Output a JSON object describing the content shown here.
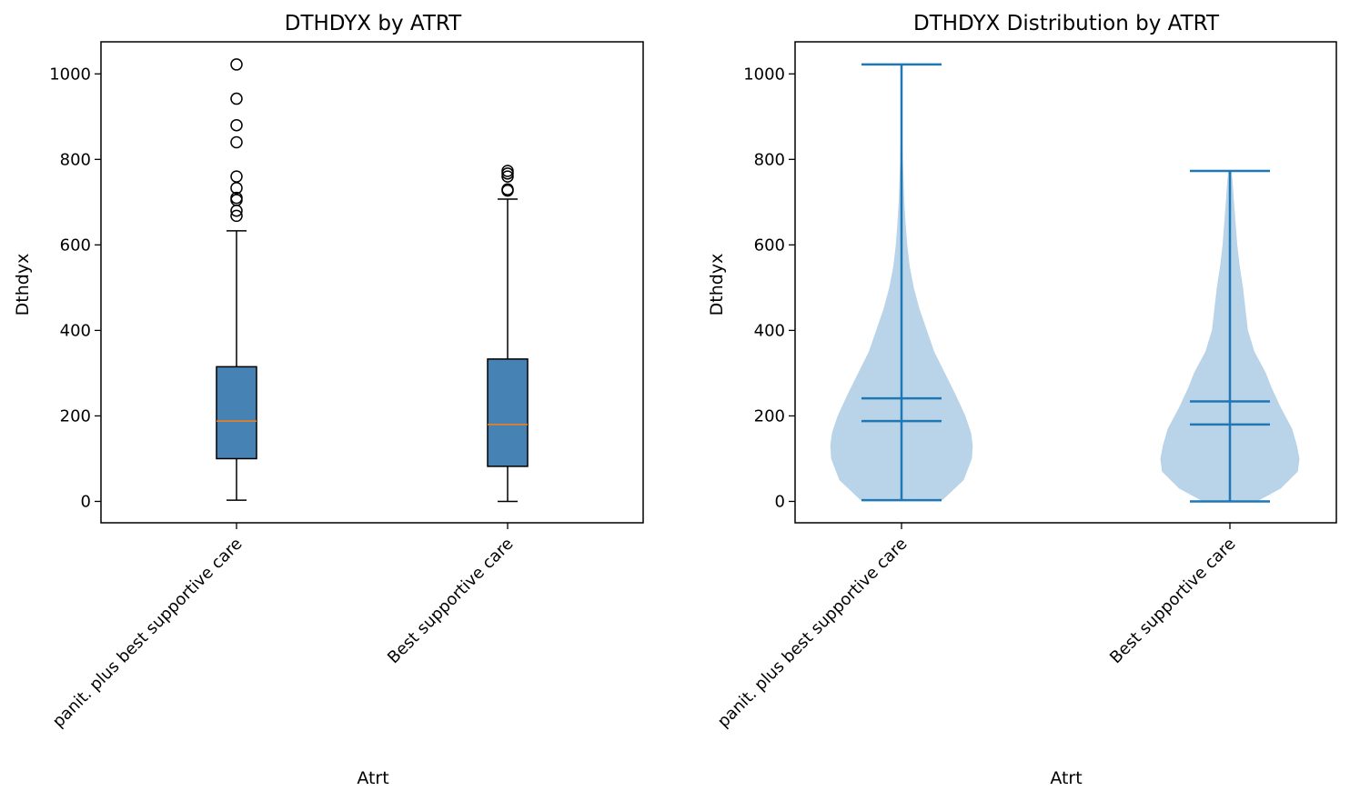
{
  "chart_data": [
    {
      "type": "box",
      "title": "DTHDYX by ATRT",
      "xlabel": "Atrt",
      "ylabel": "Dthdyx",
      "ylim": [
        -50,
        1075
      ],
      "yticks": [
        0,
        200,
        400,
        600,
        800,
        1000
      ],
      "box_color": "#4682b4",
      "median_color": "#ff7f0e",
      "categories": [
        "panit. plus best supportive care",
        "Best supportive care"
      ],
      "boxes": [
        {
          "whisker_low": 3,
          "q1": 100,
          "median": 188,
          "q3": 315,
          "whisker_high": 633,
          "outliers": [
            1022,
            942,
            880,
            840,
            760,
            733,
            710,
            705,
            680,
            668
          ]
        },
        {
          "whisker_low": 0,
          "q1": 82,
          "median": 180,
          "q3": 333,
          "whisker_high": 707,
          "outliers": [
            773,
            767,
            760,
            730,
            727
          ]
        }
      ]
    },
    {
      "type": "violin",
      "title": "DTHDYX Distribution by ATRT",
      "xlabel": "Atrt",
      "ylabel": "Dthdyx",
      "ylim": [
        -50,
        1075
      ],
      "yticks": [
        0,
        200,
        400,
        600,
        800,
        1000
      ],
      "body_color": "#b9d4e8",
      "line_color": "#1f77b4",
      "categories": [
        "panit. plus best supportive care",
        "Best supportive care"
      ],
      "violins": [
        {
          "min": 3,
          "max": 1022,
          "mean": 241,
          "median": 188,
          "density": [
            [
              3,
              0.5
            ],
            [
              50,
              0.76
            ],
            [
              100,
              0.86
            ],
            [
              130,
              0.87
            ],
            [
              160,
              0.85
            ],
            [
              200,
              0.78
            ],
            [
              250,
              0.66
            ],
            [
              300,
              0.53
            ],
            [
              350,
              0.4
            ],
            [
              400,
              0.31
            ],
            [
              450,
              0.22
            ],
            [
              500,
              0.15
            ],
            [
              550,
              0.1
            ],
            [
              600,
              0.07
            ],
            [
              650,
              0.05
            ],
            [
              700,
              0.035
            ],
            [
              750,
              0.025
            ],
            [
              800,
              0.015
            ],
            [
              850,
              0.009
            ],
            [
              900,
              0.006
            ],
            [
              950,
              0.004
            ],
            [
              1022,
              0.002
            ]
          ]
        },
        {
          "min": 0,
          "max": 773,
          "mean": 234,
          "median": 180,
          "density": [
            [
              0,
              0.33
            ],
            [
              30,
              0.62
            ],
            [
              70,
              0.83
            ],
            [
              100,
              0.85
            ],
            [
              130,
              0.82
            ],
            [
              170,
              0.76
            ],
            [
              220,
              0.62
            ],
            [
              270,
              0.5
            ],
            [
              300,
              0.44
            ],
            [
              350,
              0.3
            ],
            [
              400,
              0.22
            ],
            [
              450,
              0.19
            ],
            [
              500,
              0.16
            ],
            [
              550,
              0.12
            ],
            [
              600,
              0.09
            ],
            [
              650,
              0.07
            ],
            [
              700,
              0.05
            ],
            [
              740,
              0.035
            ],
            [
              773,
              0.02
            ]
          ]
        }
      ]
    }
  ]
}
